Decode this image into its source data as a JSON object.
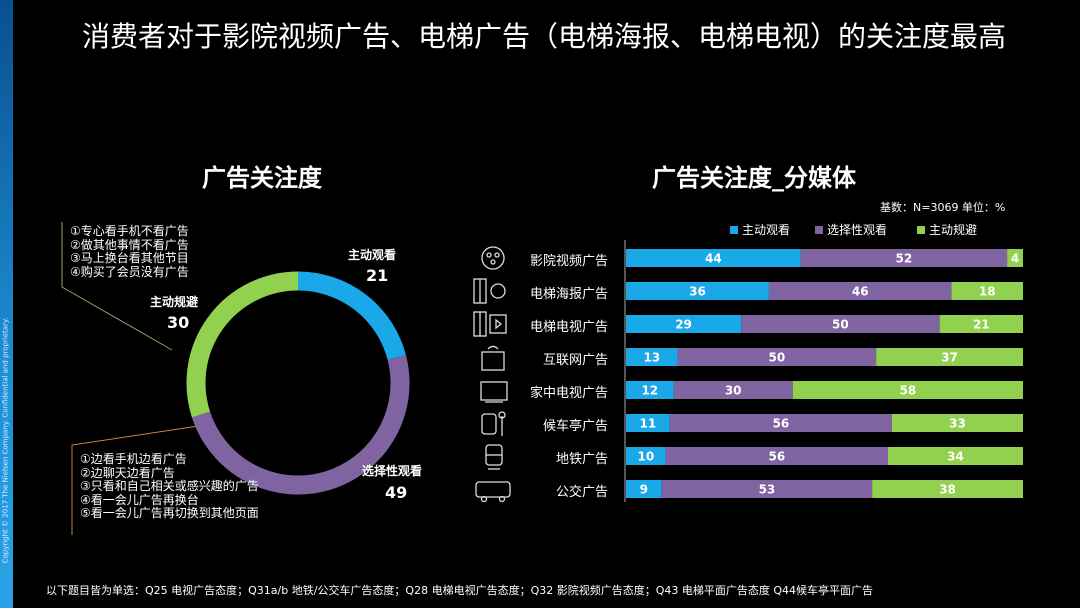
{
  "slide": {
    "title": "消费者对于影院视频广告、电梯广告（电梯海报、电梯电视）的关注度最高",
    "copyright": "Copyright © 2017 The Nielsen Company. Confidential and proprietary.",
    "footnote": "以下题目皆为单选：Q25 电视广告态度；Q31a/b 地铁/公交车广告态度；Q28 电梯电视广告态度；Q32 影院视频广告态度；Q43 电梯平面广告态度 Q44候车亭平面广告",
    "avoid_notes": [
      "①专心看手机不看广告",
      "②做其他事情不看广告",
      "③马上换台看其他节目",
      "④购买了会员没有广告"
    ],
    "selective_notes": [
      "①边看手机边看广告",
      "②边聊天边看广告",
      "③只看和自己相关或感兴趣的广告",
      "④看一会儿广告再换台",
      "⑤看一会儿广告再切换到其他页面"
    ]
  },
  "colors": {
    "active": "#1ba8e8",
    "selective": "#8064a2",
    "avoid": "#92d050"
  },
  "chart_data": [
    {
      "type": "pie",
      "title": "广告关注度",
      "categories": [
        "主动观看",
        "选择性观看",
        "主动规避"
      ],
      "values": [
        21,
        49,
        30
      ]
    },
    {
      "type": "bar",
      "stacked": true,
      "orientation": "horizontal",
      "title": "广告关注度_分媒体",
      "meta": "基数：N=3069   单位：%",
      "legend_position": "top-right",
      "categories": [
        "影院视频广告",
        "电梯海报广告",
        "电梯电视广告",
        "互联网广告",
        "家中电视广告",
        "候车亭广告",
        "地铁广告",
        "公交广告"
      ],
      "icons": [
        "film-reel-icon",
        "elevator-poster-icon",
        "elevator-tv-icon",
        "internet-icon",
        "tv-icon",
        "bus-stop-icon",
        "subway-icon",
        "bus-icon"
      ],
      "series": [
        {
          "name": "主动观看",
          "values": [
            44,
            36,
            29,
            13,
            12,
            11,
            10,
            9
          ]
        },
        {
          "name": "选择性观看",
          "values": [
            52,
            46,
            50,
            50,
            30,
            56,
            56,
            53
          ]
        },
        {
          "name": "主动规避",
          "values": [
            4,
            18,
            21,
            37,
            58,
            33,
            34,
            38
          ]
        }
      ],
      "xlim": [
        0,
        100
      ]
    }
  ]
}
